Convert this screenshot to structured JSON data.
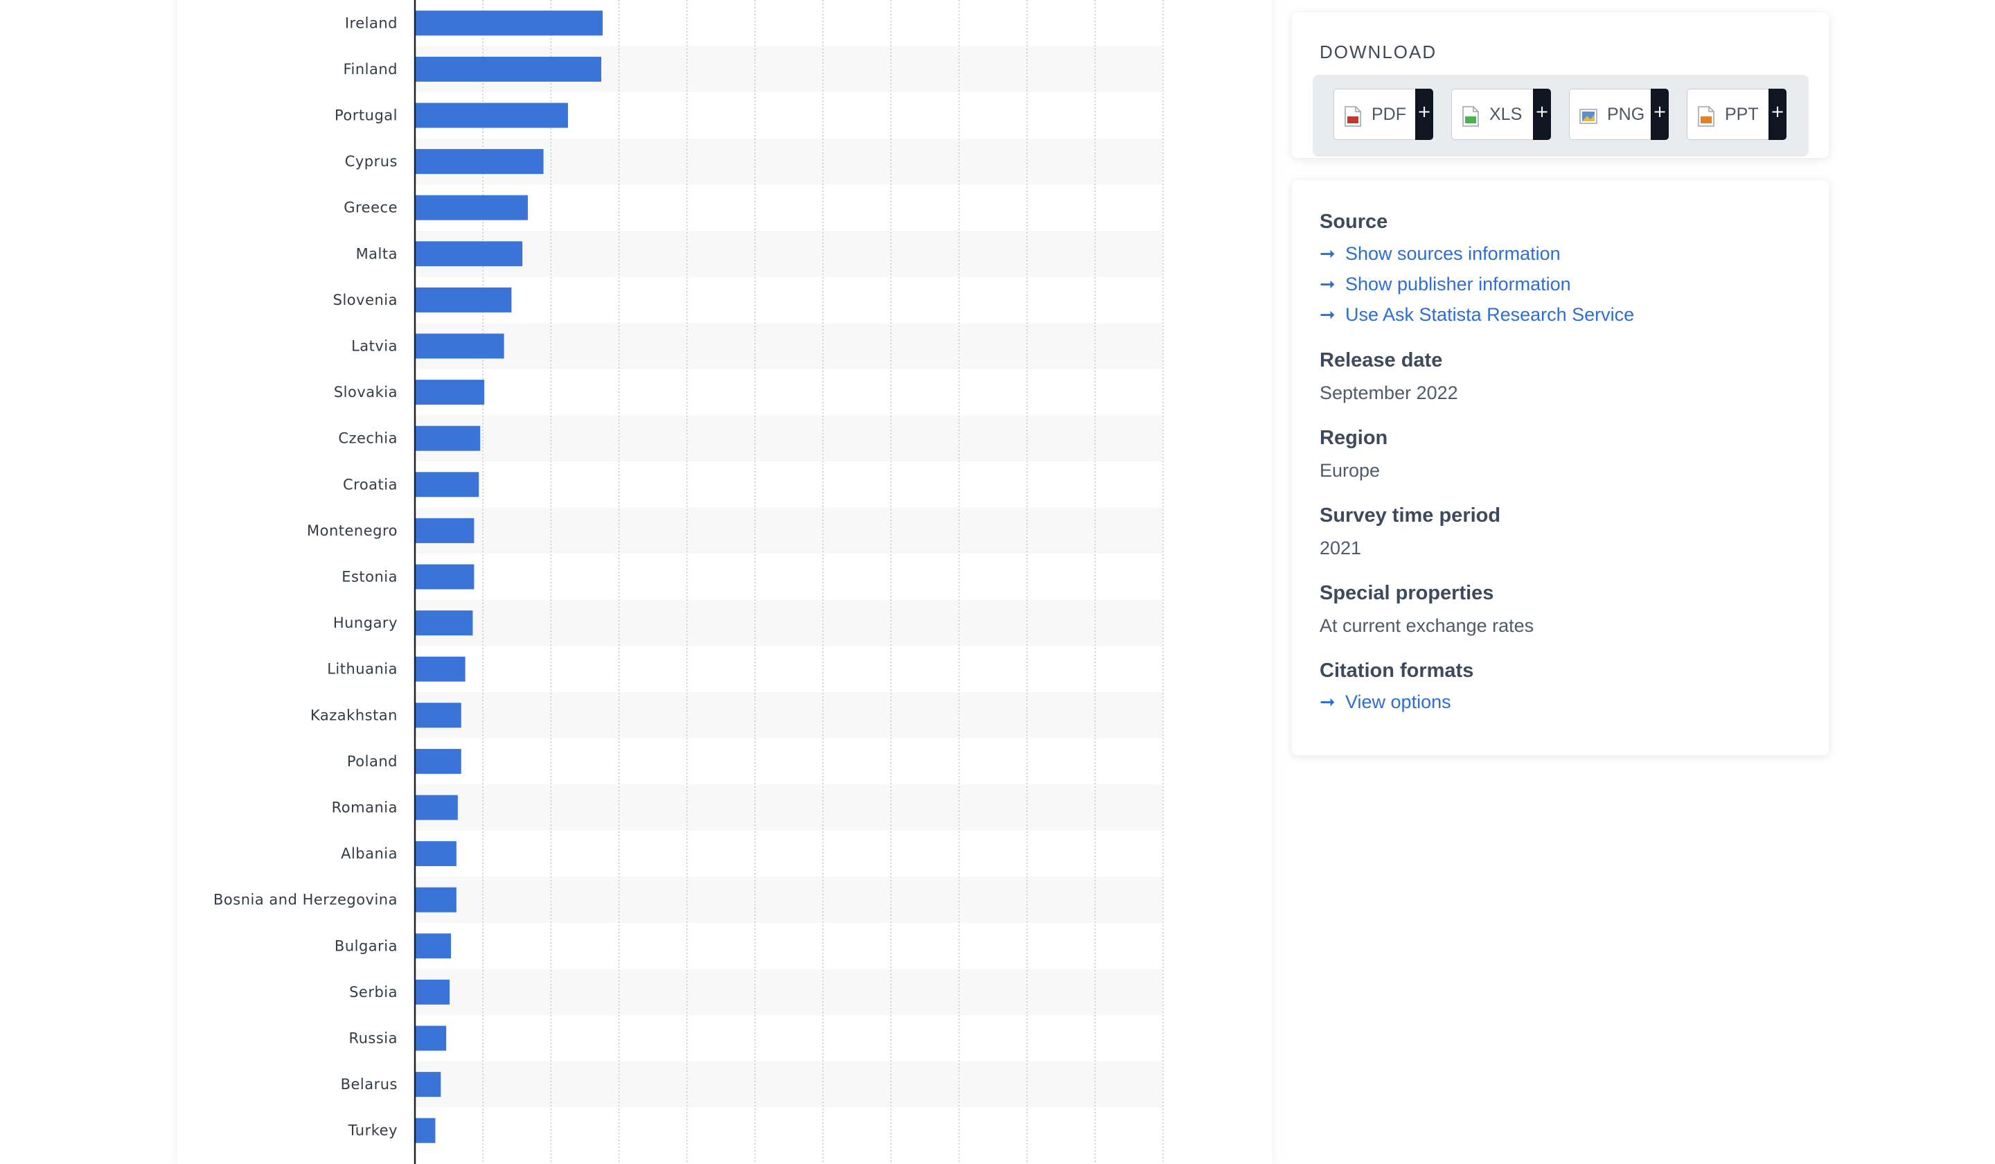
{
  "chart_data": {
    "type": "bar",
    "orientation": "horizontal",
    "categories": [
      "Ireland",
      "Finland",
      "Portugal",
      "Cyprus",
      "Greece",
      "Malta",
      "Slovenia",
      "Latvia",
      "Slovakia",
      "Czechia",
      "Croatia",
      "Montenegro",
      "Estonia",
      "Hungary",
      "Lithuania",
      "Kazakhstan",
      "Poland",
      "Romania",
      "Albania",
      "Bosnia and Herzegovina",
      "Bulgaria",
      "Serbia",
      "Russia",
      "Belarus",
      "Turkey"
    ],
    "values": [
      2.76,
      2.74,
      2.25,
      1.89,
      1.66,
      1.58,
      1.42,
      1.31,
      1.02,
      0.96,
      0.94,
      0.87,
      0.87,
      0.85,
      0.74,
      0.68,
      0.68,
      0.63,
      0.61,
      0.61,
      0.53,
      0.51,
      0.46,
      0.38,
      0.3
    ],
    "xlim": [
      0,
      11
    ],
    "grid": true,
    "bar_color": "#3a74d9"
  },
  "download": {
    "title": "DOWNLOAD",
    "buttons": [
      {
        "label": "PDF",
        "icon": "pdf-file-icon",
        "color": "#c0392b"
      },
      {
        "label": "XLS",
        "icon": "xls-file-icon",
        "color": "#4caf50"
      },
      {
        "label": "PNG",
        "icon": "png-file-icon",
        "color": "#5b8fd1"
      },
      {
        "label": "PPT",
        "icon": "ppt-file-icon",
        "color": "#e67e22"
      }
    ],
    "plus": "+"
  },
  "info": {
    "source": {
      "heading": "Source",
      "links": [
        "Show sources information",
        "Show publisher information",
        "Use Ask Statista Research Service"
      ]
    },
    "release": {
      "heading": "Release date",
      "value": "September 2022"
    },
    "region": {
      "heading": "Region",
      "value": "Europe"
    },
    "survey": {
      "heading": "Survey time period",
      "value": "2021"
    },
    "special": {
      "heading": "Special properties",
      "value": "At current exchange rates"
    },
    "citation": {
      "heading": "Citation formats",
      "link": "View options"
    },
    "arrow": "➞"
  }
}
